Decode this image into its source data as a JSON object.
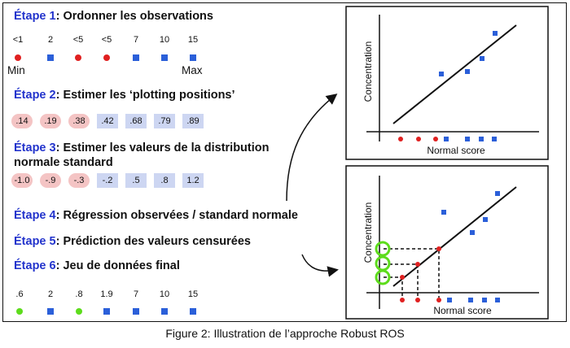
{
  "steps": [
    {
      "num": "Étape 1",
      "text": ": Ordonner les observations"
    },
    {
      "num": "Étape 2",
      "text": ": Estimer les ‘plotting positions’"
    },
    {
      "num": "Étape 3",
      "text": ": Estimer les valeurs de la distribution"
    },
    {
      "num": "Étape 4",
      "text": ": Régression observées /  standard normale"
    },
    {
      "num": "Étape 5",
      "text": ": Prédiction des valeurs censurées"
    },
    {
      "num": "Étape 6",
      "text": ": Jeu de données final"
    }
  ],
  "step3_line2": "normale standard",
  "step1": {
    "values": [
      "<1",
      "2",
      "<5",
      "<5",
      "7",
      "10",
      "15"
    ],
    "markers": [
      "circle",
      "square",
      "circle",
      "circle",
      "square",
      "square",
      "square"
    ],
    "min_label": "Min",
    "max_label": "Max"
  },
  "step2": {
    "values": [
      ".14",
      ".19",
      ".38",
      ".42",
      ".68",
      ".79",
      ".89"
    ],
    "kinds": [
      "censored",
      "censored",
      "censored",
      "detected",
      "detected",
      "detected",
      "detected"
    ]
  },
  "step3": {
    "values": [
      "-1.0",
      "-.9",
      "-.3",
      "-.2",
      ".5",
      ".8",
      "1.2"
    ],
    "kinds": [
      "censored",
      "censored",
      "censored",
      "detected",
      "detected",
      "detected",
      "detected"
    ]
  },
  "step6": {
    "values": [
      ".6",
      "2",
      ".8",
      "1.9",
      "7",
      "10",
      "15"
    ],
    "markers": [
      "circle-green",
      "square",
      "circle-green",
      "square",
      "square",
      "square",
      "square"
    ]
  },
  "panels": {
    "y_label": "Concentration",
    "x_label": "Normal score"
  },
  "caption": "Figure 2: Illustration de l’approche Robust ROS",
  "colors": {
    "step_number": "#2233cc",
    "censored": "#e02020",
    "detected": "#2b5fd9",
    "imputed": "#5ddc1c",
    "censored_bg": "#f4c4c4",
    "detected_bg": "#cdd6f2"
  }
}
